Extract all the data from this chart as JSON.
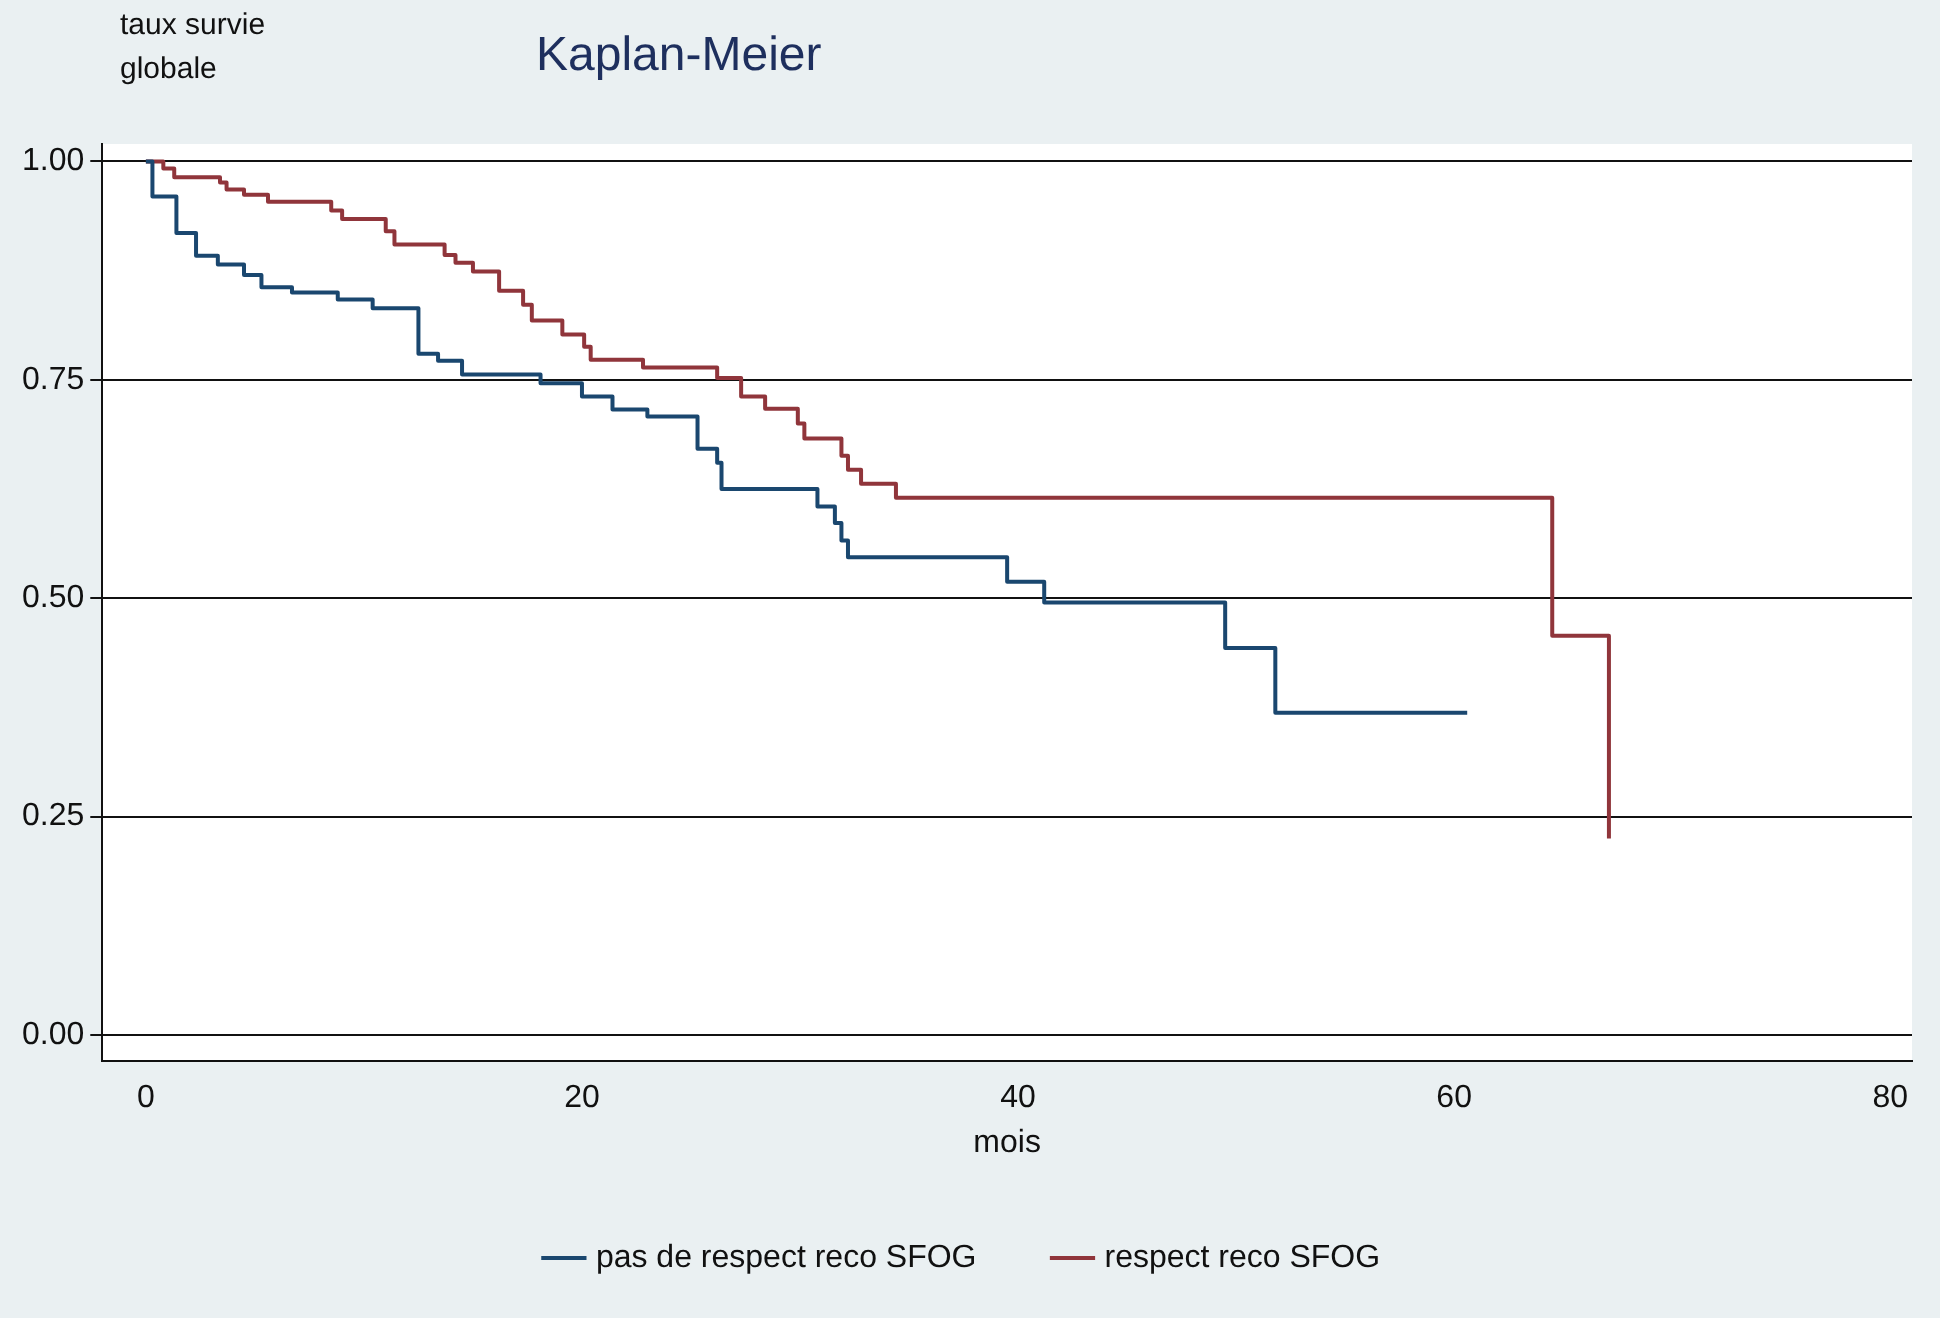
{
  "chart_data": {
    "type": "step",
    "title": "Kaplan-Meier",
    "ylabel": "taux survie globale",
    "xlabel": "mois",
    "xlim": [
      -2,
      81
    ],
    "xticks": [
      0,
      20,
      40,
      60,
      80
    ],
    "ylim": [
      -0.03,
      1.02
    ],
    "yticks": [
      {
        "value": 0,
        "label": "0.00"
      },
      {
        "value": 0.25,
        "label": "0.25"
      },
      {
        "value": 0.5,
        "label": "0.50"
      },
      {
        "value": 0.75,
        "label": "0.75"
      },
      {
        "value": 1,
        "label": "1.00"
      }
    ],
    "grid": "y",
    "legend": "bottom",
    "line_style": "solid",
    "marker": "none",
    "series": [
      {
        "name": "pas de respect reco SFOG",
        "color": "#1a476f",
        "x": [
          0,
          0.3,
          1.4,
          2.3,
          3.3,
          4.5,
          5.3,
          6.7,
          8.8,
          10.4,
          12.5,
          13.4,
          14.5,
          18.1,
          20.0,
          21.4,
          23.0,
          25.3,
          26.2,
          26.4,
          30.8,
          31.6,
          31.9,
          32.2,
          39.5,
          41.2,
          49.5,
          51.8,
          60.6
        ],
        "values": [
          1,
          0.96,
          0.918,
          0.892,
          0.882,
          0.87,
          0.856,
          0.85,
          0.842,
          0.832,
          0.78,
          0.772,
          0.756,
          0.746,
          0.731,
          0.716,
          0.708,
          0.671,
          0.655,
          0.625,
          0.605,
          0.586,
          0.566,
          0.547,
          0.519,
          0.495,
          0.443,
          0.369,
          0.369
        ]
      },
      {
        "name": "respect reco SFOG",
        "color": "#90353b",
        "x": [
          0,
          0.8,
          1.3,
          3.4,
          3.7,
          4.5,
          5.6,
          8.5,
          9.0,
          11.0,
          11.4,
          13.7,
          14.2,
          15.0,
          16.2,
          17.3,
          17.7,
          19.1,
          20.1,
          20.4,
          22.8,
          26.2,
          27.3,
          28.4,
          29.9,
          30.2,
          31.9,
          32.2,
          32.8,
          34.4,
          64.5,
          67.1
        ],
        "values": [
          1,
          0.992,
          0.982,
          0.976,
          0.968,
          0.962,
          0.954,
          0.944,
          0.934,
          0.92,
          0.905,
          0.893,
          0.884,
          0.874,
          0.852,
          0.836,
          0.818,
          0.802,
          0.788,
          0.773,
          0.764,
          0.752,
          0.731,
          0.717,
          0.7,
          0.683,
          0.663,
          0.647,
          0.631,
          0.615,
          0.457,
          0.225
        ]
      }
    ]
  }
}
